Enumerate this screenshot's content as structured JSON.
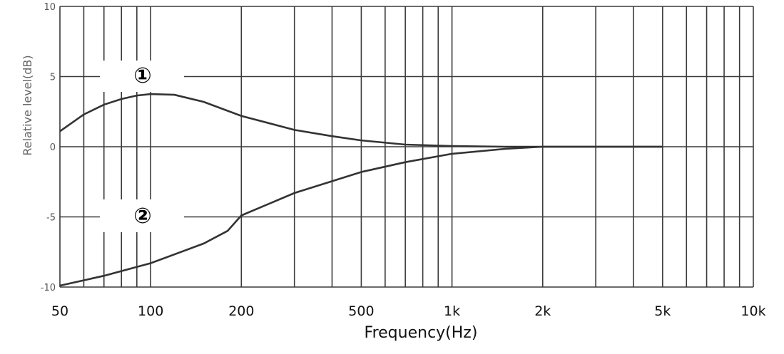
{
  "chart_data": {
    "type": "line",
    "xscale": "log",
    "xlabel": "Frequency(Hz)",
    "ylabel": "Relative level(dB)",
    "xlim": [
      50,
      10000
    ],
    "ylim": [
      -10,
      10
    ],
    "y_ticks": [
      "10",
      "5",
      "0",
      "-5",
      "-10"
    ],
    "x_ticks": [
      {
        "value": 50,
        "label": "50"
      },
      {
        "value": 100,
        "label": "100"
      },
      {
        "value": 200,
        "label": "200"
      },
      {
        "value": 500,
        "label": "500"
      },
      {
        "value": 1000,
        "label": "1k"
      },
      {
        "value": 2000,
        "label": "2k"
      },
      {
        "value": 5000,
        "label": "5k"
      },
      {
        "value": 10000,
        "label": "10k"
      }
    ],
    "vertical_grid": [
      50,
      60,
      70,
      80,
      90,
      100,
      200,
      300,
      400,
      500,
      600,
      700,
      800,
      900,
      1000,
      2000,
      3000,
      4000,
      5000,
      6000,
      7000,
      8000,
      9000,
      10000
    ],
    "grid": true,
    "series": [
      {
        "name": "①",
        "x": [
          50,
          60,
          70,
          80,
          90,
          100,
          120,
          150,
          200,
          300,
          400,
          500,
          700,
          1000,
          1500,
          2000,
          3000,
          5000
        ],
        "y": [
          1.1,
          2.3,
          3.0,
          3.4,
          3.65,
          3.75,
          3.7,
          3.2,
          2.2,
          1.2,
          0.75,
          0.45,
          0.15,
          0.05,
          0.0,
          0.0,
          0.0,
          0.0
        ]
      },
      {
        "name": "②",
        "x": [
          50,
          70,
          100,
          150,
          180,
          200,
          300,
          500,
          700,
          1000,
          1500,
          2000,
          3000,
          5000
        ],
        "y": [
          -9.9,
          -9.2,
          -8.3,
          -6.9,
          -6.0,
          -4.9,
          -3.3,
          -1.8,
          -1.1,
          -0.5,
          -0.15,
          0.0,
          0.0,
          0.0
        ]
      }
    ]
  }
}
